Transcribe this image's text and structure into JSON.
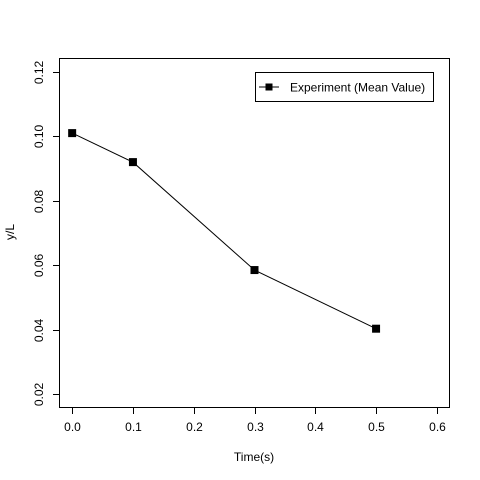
{
  "chart_data": {
    "type": "line",
    "title": "",
    "xlabel": "Time(s)",
    "ylabel": "y/L",
    "xlim": [
      -0.02,
      0.62
    ],
    "ylim": [
      0.016,
      0.124
    ],
    "x_ticks": [
      0.0,
      0.1,
      0.2,
      0.3,
      0.4,
      0.5,
      0.6
    ],
    "x_tick_labels": [
      "0.0",
      "0.1",
      "0.2",
      "0.3",
      "0.4",
      "0.5",
      "0.6"
    ],
    "y_ticks": [
      0.02,
      0.04,
      0.06,
      0.08,
      0.1,
      0.12
    ],
    "y_tick_labels": [
      "0.02",
      "0.04",
      "0.06",
      "0.08",
      "0.10",
      "0.12"
    ],
    "grid": false,
    "legend": {
      "placement": "top-right",
      "entries": [
        "Experiment (Mean Value)"
      ]
    },
    "series": [
      {
        "name": "Experiment (Mean Value)",
        "marker": "square",
        "color": "#000000",
        "x": [
          0.0,
          0.1,
          0.3,
          0.5
        ],
        "y": [
          0.101,
          0.092,
          0.0585,
          0.0403
        ]
      }
    ]
  }
}
